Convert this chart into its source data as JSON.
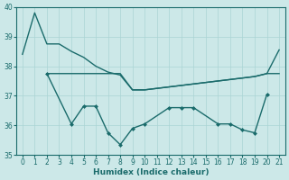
{
  "xlabel": "Humidex (Indice chaleur)",
  "background_color": "#cce8e8",
  "line_color": "#1a6b6b",
  "grid_color": "#aad4d4",
  "xlim": [
    -0.5,
    21.5
  ],
  "ylim": [
    35,
    40
  ],
  "yticks": [
    35,
    36,
    37,
    38,
    39,
    40
  ],
  "xticks": [
    0,
    1,
    2,
    3,
    4,
    5,
    6,
    7,
    8,
    9,
    10,
    11,
    12,
    13,
    14,
    15,
    16,
    17,
    18,
    19,
    20,
    21
  ],
  "line1_x": [
    0,
    1,
    2,
    3,
    4,
    5,
    6,
    7,
    8,
    9,
    10,
    11,
    12,
    13,
    14,
    15,
    16,
    17,
    18,
    19,
    20,
    21
  ],
  "line1_y": [
    38.4,
    39.8,
    38.75,
    38.75,
    38.5,
    38.3,
    38.0,
    37.8,
    37.7,
    37.2,
    37.2,
    37.25,
    37.3,
    37.35,
    37.4,
    37.45,
    37.5,
    37.55,
    37.6,
    37.65,
    37.75,
    38.55
  ],
  "line2_x": [
    2,
    3,
    4,
    5,
    6,
    7,
    8,
    9,
    10,
    11,
    12,
    13,
    14,
    15,
    16,
    17,
    18,
    19,
    20,
    21
  ],
  "line2_y": [
    37.75,
    37.75,
    37.75,
    37.75,
    37.75,
    37.75,
    37.75,
    37.2,
    37.2,
    37.25,
    37.3,
    37.35,
    37.4,
    37.45,
    37.5,
    37.55,
    37.6,
    37.65,
    37.75,
    37.75
  ],
  "line3_x": [
    2,
    4,
    5,
    6,
    7,
    8,
    9,
    10,
    12,
    13,
    14,
    16,
    17,
    18,
    19,
    20
  ],
  "line3_y": [
    37.75,
    36.05,
    36.65,
    36.65,
    35.75,
    35.35,
    35.9,
    36.05,
    36.6,
    36.6,
    36.6,
    36.05,
    36.05,
    35.85,
    35.75,
    37.05
  ]
}
